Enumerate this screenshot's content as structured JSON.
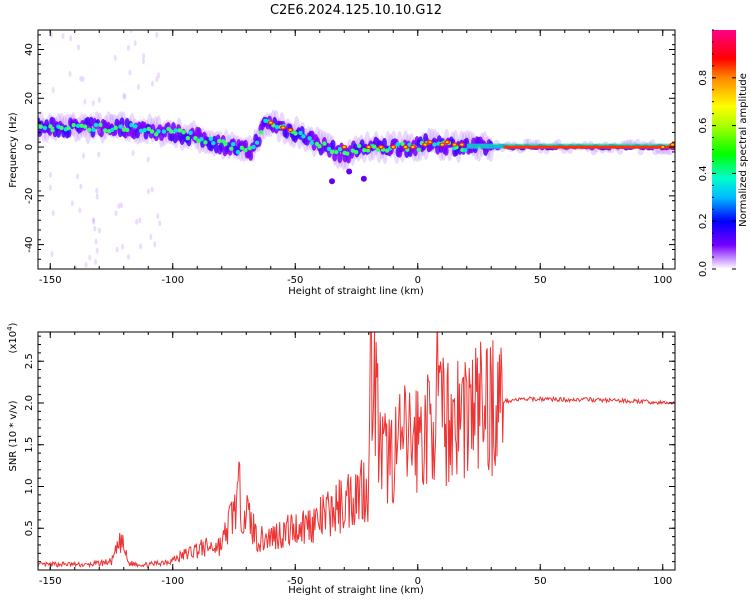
{
  "title": "C2E6.2024.125.10.10.G12",
  "colors": {
    "snr_line": "#ee3333",
    "axes": "#000000",
    "background": "#ffffff"
  },
  "chart_data": [
    {
      "type": "heatmap",
      "xlabel": "Height of straight line (km)",
      "ylabel": "Frequency (Hz)",
      "xlim": [
        -155,
        105
      ],
      "ylim": [
        -50,
        48
      ],
      "x_ticks": [
        -150,
        -100,
        -50,
        0,
        50,
        100
      ],
      "y_ticks": [
        -40,
        -20,
        0,
        20,
        40
      ],
      "x_tick_labels": [
        "-150",
        "-100",
        "-50",
        "0",
        "50",
        "100"
      ],
      "y_tick_labels": [
        "-40",
        "-20",
        "0",
        "20",
        "40"
      ],
      "grid": false,
      "colormap": "hsv-reversed (white-violet-blue-cyan-green-yellow-red-magenta)",
      "colorbar": {
        "label": "Normalized spectral amplitude",
        "range": [
          0,
          1
        ],
        "ticks": [
          0.0,
          0.2,
          0.4,
          0.6,
          0.8
        ],
        "tick_labels": [
          "0.0",
          "0.2",
          "0.4",
          "0.6",
          "0.8"
        ]
      },
      "ridge": {
        "description_points": [
          [
            -155,
            8
          ],
          [
            -140,
            8
          ],
          [
            -120,
            8
          ],
          [
            -100,
            6
          ],
          [
            -90,
            4
          ],
          [
            -80,
            1
          ],
          [
            -68,
            -2
          ],
          [
            -62,
            10
          ],
          [
            -55,
            8
          ],
          [
            -45,
            4
          ],
          [
            -38,
            0
          ],
          [
            -30,
            -3
          ],
          [
            -25,
            -1
          ],
          [
            -20,
            0
          ],
          [
            0,
            0
          ],
          [
            5,
            2
          ],
          [
            10,
            1
          ],
          [
            20,
            0
          ],
          [
            50,
            0
          ],
          [
            100,
            0
          ]
        ]
      }
    },
    {
      "type": "line",
      "xlabel": "Height of straight line (km)",
      "ylabel": "SNR (10 * v/v)",
      "y_multiplier_label": "(x10",
      "y_multiplier_exp": "4",
      "y_multiplier_close": ")",
      "xlim": [
        -155,
        105
      ],
      "ylim": [
        0,
        2.85
      ],
      "x_ticks": [
        -150,
        -100,
        -50,
        0,
        50,
        100
      ],
      "y_ticks": [
        0.5,
        1.0,
        1.5,
        2.0,
        2.5
      ],
      "x_tick_labels": [
        "-150",
        "-100",
        "-50",
        "0",
        "50",
        "100"
      ],
      "y_tick_labels": [
        "0.5",
        "1.0",
        "1.5",
        "2.0",
        "2.5"
      ],
      "grid": false,
      "series": [
        {
          "x": [
            -155,
            -145,
            -135,
            -125,
            -121,
            -118,
            -110,
            -100,
            -90,
            -80,
            -73,
            -65,
            -55,
            -50,
            -45,
            -40,
            -35,
            -30,
            -25,
            -20,
            -19,
            -15,
            -10,
            -5,
            0,
            5,
            8,
            10,
            15,
            20,
            25,
            30,
            40,
            50,
            60,
            70,
            80,
            90,
            100,
            105
          ],
          "y": [
            0.06,
            0.07,
            0.06,
            0.1,
            0.35,
            0.08,
            0.06,
            0.12,
            0.25,
            0.3,
            0.9,
            0.35,
            0.45,
            0.5,
            0.55,
            0.6,
            0.7,
            0.8,
            0.95,
            1.05,
            2.8,
            1.3,
            1.4,
            1.55,
            1.6,
            1.7,
            2.15,
            1.75,
            1.85,
            1.9,
            1.95,
            2.0,
            2.04,
            2.05,
            2.04,
            2.04,
            2.03,
            2.02,
            2.0,
            2.0
          ]
        }
      ]
    }
  ]
}
